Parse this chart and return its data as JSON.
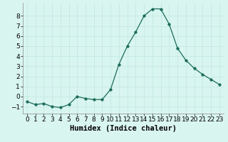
{
  "x": [
    0,
    1,
    2,
    3,
    4,
    5,
    6,
    7,
    8,
    9,
    10,
    11,
    12,
    13,
    14,
    15,
    16,
    17,
    18,
    19,
    20,
    21,
    22,
    23
  ],
  "y": [
    -0.5,
    -0.8,
    -0.7,
    -1.0,
    -1.1,
    -0.8,
    0.0,
    -0.2,
    -0.3,
    -0.3,
    0.7,
    3.2,
    5.0,
    6.4,
    8.0,
    8.7,
    8.7,
    7.2,
    4.8,
    3.6,
    2.8,
    2.2,
    1.7,
    1.2
  ],
  "xlabel": "Humidex (Indice chaleur)",
  "xlim": [
    -0.5,
    23.5
  ],
  "ylim": [
    -1.7,
    9.3
  ],
  "yticks": [
    -1,
    0,
    1,
    2,
    3,
    4,
    5,
    6,
    7,
    8
  ],
  "xticks": [
    0,
    1,
    2,
    3,
    4,
    5,
    6,
    7,
    8,
    9,
    10,
    11,
    12,
    13,
    14,
    15,
    16,
    17,
    18,
    19,
    20,
    21,
    22,
    23
  ],
  "line_color": "#1a6b5a",
  "marker": "o",
  "marker_size": 2.5,
  "bg_color": "#d9f5f0",
  "grid_color": "#c0e8e0",
  "xlabel_fontsize": 7.5,
  "tick_fontsize": 6.5
}
